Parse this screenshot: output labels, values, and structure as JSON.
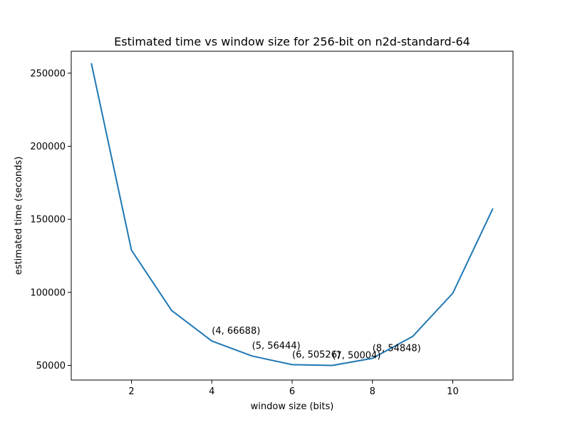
{
  "chart_data": {
    "type": "line",
    "title": "Estimated time vs window size for 256-bit on n2d-standard-64",
    "xlabel": "window size (bits)",
    "ylabel": "estimated time (seconds)",
    "xlim": [
      0.5,
      11.5
    ],
    "ylim": [
      40000,
      265000
    ],
    "xticks": [
      2,
      4,
      6,
      8,
      10
    ],
    "yticks": [
      50000,
      100000,
      150000,
      200000,
      250000
    ],
    "grid": false,
    "series": [
      {
        "color": "#1f77b4",
        "x": [
          1,
          2,
          3,
          4,
          5,
          6,
          7,
          8,
          9,
          10,
          11
        ],
        "values": [
          256800,
          128900,
          87600,
          66688,
          56444,
          50526,
          50004,
          54848,
          69800,
          99400,
          157400
        ]
      }
    ],
    "annotations": [
      {
        "x": 4,
        "y": 66688,
        "text": "(4, 66688)"
      },
      {
        "x": 5,
        "y": 56444,
        "text": "(5, 56444)"
      },
      {
        "x": 6,
        "y": 50526,
        "text": "(6, 50526)"
      },
      {
        "x": 7,
        "y": 50004,
        "text": "(7, 50004)"
      },
      {
        "x": 8,
        "y": 54848,
        "text": "(8, 54848)"
      }
    ]
  }
}
